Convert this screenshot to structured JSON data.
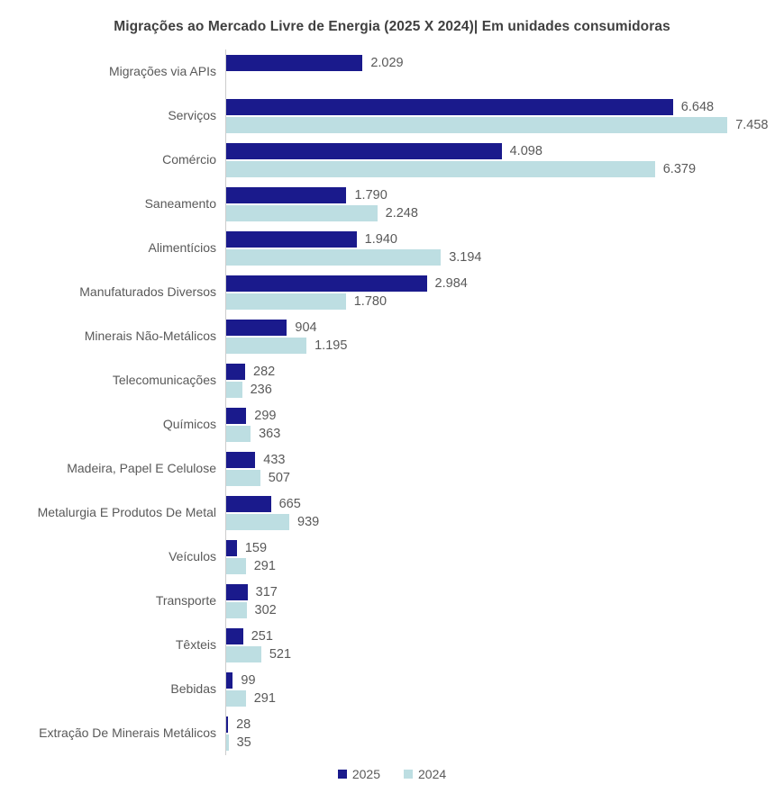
{
  "title": "Migrações ao Mercado Livre de Energia (2025 X 2024)| Em unidades consumidoras",
  "colors": {
    "series_2025": "#1A1A8C",
    "series_2024": "#BDDEE2",
    "text": "#595959",
    "title_text": "#404040",
    "axis_line": "#CDCDCD",
    "background": "#FFFFFF"
  },
  "legend": {
    "position": "bottom",
    "items": [
      {
        "label": "2025",
        "color": "#1A1A8C"
      },
      {
        "label": "2024",
        "color": "#BDDEE2"
      }
    ]
  },
  "chart_data": {
    "type": "bar",
    "orientation": "horizontal",
    "title": "Migrações ao Mercado Livre de Energia (2025 X 2024)| Em unidades consumidoras",
    "xlabel": "",
    "ylabel": "",
    "xlim": [
      0,
      8300
    ],
    "grid": false,
    "legend_position": "bottom",
    "categories": [
      "Migrações via APIs",
      "Serviços",
      "Comércio",
      "Saneamento",
      "Alimentícios",
      "Manufaturados Diversos",
      "Minerais Não-Metálicos",
      "Telecomunicações",
      "Químicos",
      "Madeira, Papel E Celulose",
      "Metalurgia E Produtos De Metal",
      "Veículos",
      "Transporte",
      "Têxteis",
      "Bebidas",
      "Extração De Minerais Metálicos"
    ],
    "series": [
      {
        "name": "2025",
        "color": "#1A1A8C",
        "values": [
          2029,
          6648,
          4098,
          1790,
          1940,
          2984,
          904,
          282,
          299,
          433,
          665,
          159,
          317,
          251,
          99,
          28
        ],
        "labels": [
          "2.029",
          "6.648",
          "4.098",
          "1.790",
          "1.940",
          "2.984",
          "904",
          "282",
          "299",
          "433",
          "665",
          "159",
          "317",
          "251",
          "99",
          "28"
        ]
      },
      {
        "name": "2024",
        "color": "#BDDEE2",
        "values": [
          null,
          7458,
          6379,
          2248,
          3194,
          1780,
          1195,
          236,
          363,
          507,
          939,
          291,
          302,
          521,
          291,
          35
        ],
        "labels": [
          "",
          "7.458",
          "6.379",
          "2.248",
          "3.194",
          "1.780",
          "1.195",
          "236",
          "363",
          "507",
          "939",
          "291",
          "302",
          "521",
          "291",
          "35"
        ]
      }
    ]
  }
}
